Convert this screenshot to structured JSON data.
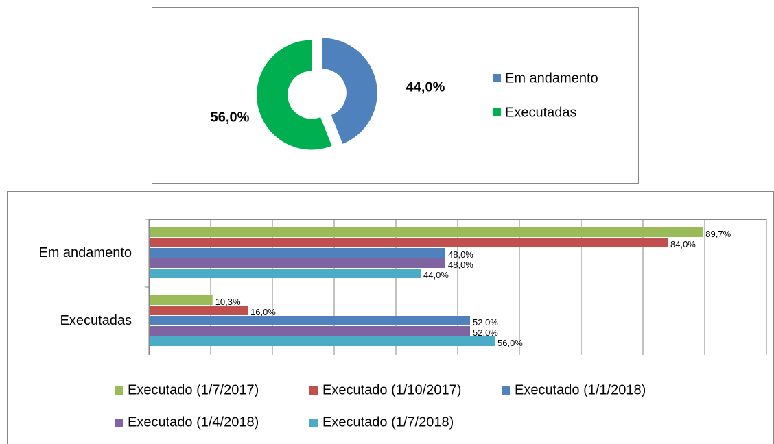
{
  "chart_data": [
    {
      "type": "pie",
      "donut": true,
      "categories": [
        "Em andamento",
        "Executadas"
      ],
      "values": [
        44,
        56
      ],
      "value_labels": [
        "44,0%",
        "56,0%"
      ],
      "colors": [
        "#4f81bd",
        "#00b050"
      ],
      "legend": "right"
    },
    {
      "type": "hbar",
      "categories": [
        "Em andamento",
        "Executadas"
      ],
      "series": [
        {
          "name": "Executado (1/7/2017)",
          "color": "#9bbb59",
          "values": [
            89.7,
            10.3
          ],
          "value_labels": [
            "89,7%",
            "10,3%"
          ]
        },
        {
          "name": "Executado (1/10/2017)",
          "color": "#c0504d",
          "values": [
            84.0,
            16.0
          ],
          "value_labels": [
            "84,0%",
            "16,0%"
          ]
        },
        {
          "name": "Executado (1/1/2018)",
          "color": "#4f81bd",
          "values": [
            48.0,
            52.0
          ],
          "value_labels": [
            "48,0%",
            "52,0%"
          ]
        },
        {
          "name": "Executado (1/4/2018)",
          "color": "#8064a2",
          "values": [
            48.0,
            52.0
          ],
          "value_labels": [
            "48,0%",
            "52,0%"
          ]
        },
        {
          "name": "Executado (1/7/2018)",
          "color": "#4bacc6",
          "values": [
            44.0,
            56.0
          ],
          "value_labels": [
            "44,0%",
            "56,0%"
          ]
        }
      ],
      "xlim": [
        0,
        100
      ],
      "xticks": [
        0,
        10,
        20,
        30,
        40,
        50,
        60,
        70,
        80,
        90,
        100
      ],
      "grid": true,
      "legend": "bottom"
    }
  ]
}
